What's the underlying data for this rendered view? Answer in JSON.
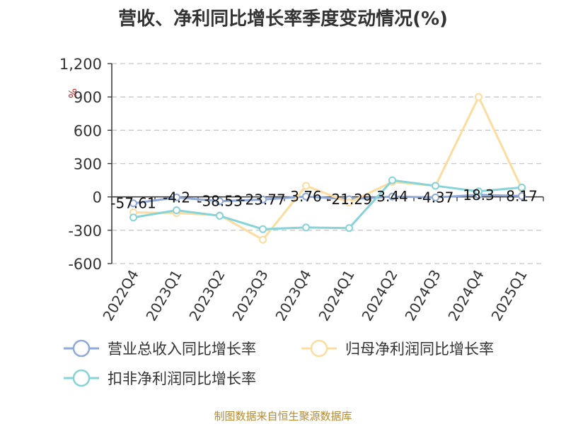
{
  "title": "营收、净利同比增长率季度变动情况(%)",
  "source": "制图数据来自恒生聚源数据库",
  "chart_data": {
    "type": "line",
    "title": "营收、净利同比增长率季度变动情况(%)",
    "ylabel": "%",
    "ylim": [
      -600,
      1200
    ],
    "yticks": [
      -600,
      -300,
      0,
      300,
      600,
      900,
      1200
    ],
    "ytick_labels": [
      "-600",
      "-300",
      "0",
      "300",
      "600",
      "900",
      "1,200"
    ],
    "grid": true,
    "legend": "bottom",
    "categories": [
      "2022Q4",
      "2023Q1",
      "2023Q2",
      "2023Q3",
      "2023Q4",
      "2024Q1",
      "2024Q2",
      "2024Q3",
      "2024Q4",
      "2025Q1"
    ],
    "series": [
      {
        "name": "营业总收入同比增长率",
        "color": "#8fa9d8",
        "values": [
          -57.61,
          -4.2,
          -38.53,
          -23.77,
          3.76,
          -21.29,
          3.44,
          -4.37,
          18.3,
          8.17
        ],
        "labels": [
          "-57.61",
          "-4.2",
          "-38.53",
          "-23.77",
          "3.76",
          "-21.29",
          "3.44",
          "-4.37",
          "18.3",
          "8.17"
        ]
      },
      {
        "name": "归母净利润同比增长率",
        "color": "#fddc9f",
        "values": [
          -140,
          -145,
          -165,
          -385,
          100,
          -50,
          135,
          100,
          900,
          75
        ]
      },
      {
        "name": "扣非净利润同比增长率",
        "color": "#86d3d8",
        "values": [
          -185,
          -120,
          -170,
          -290,
          -275,
          -280,
          150,
          100,
          50,
          85
        ]
      }
    ]
  }
}
